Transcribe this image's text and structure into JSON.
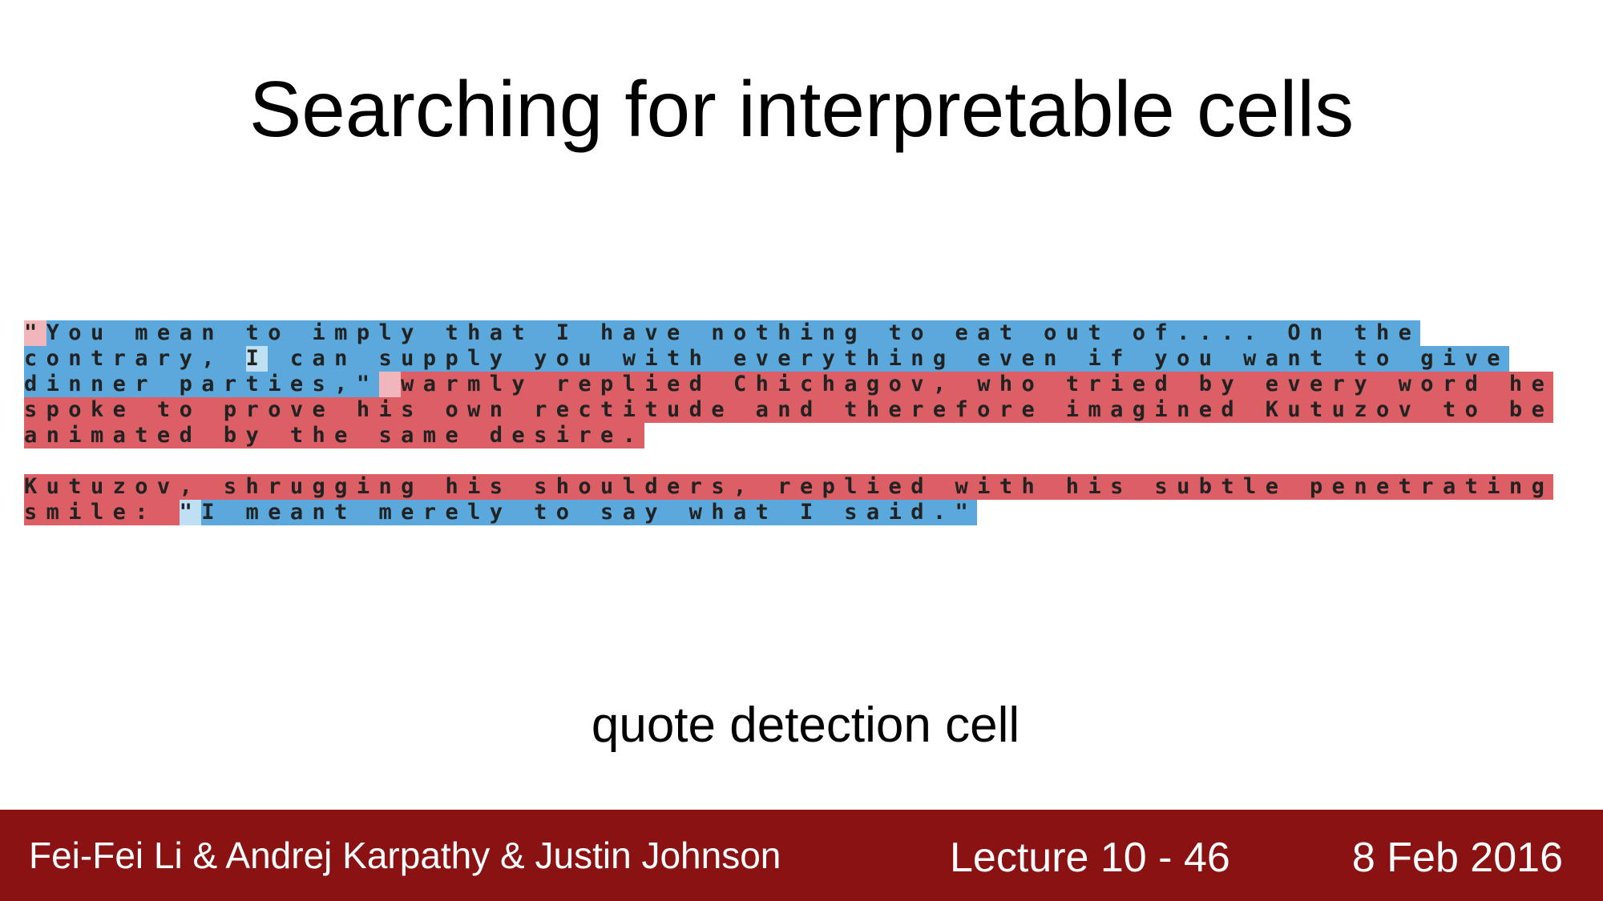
{
  "slide": {
    "title": "Searching for  interpretable cells",
    "caption": "quote detection cell"
  },
  "colors": {
    "inside_quote": "#5aa8dc",
    "outside_quote": "#dc5f66",
    "light_inside": "#bfe0f2",
    "light_outside": "#f0b6b9"
  },
  "text_lines": [
    [
      {
        "text": "\"",
        "state": "light_outside"
      },
      {
        "text": "You mean to imply that I have nothing to eat out of.... On the",
        "state": "inside_quote"
      }
    ],
    [
      {
        "text": "contrary, ",
        "state": "inside_quote"
      },
      {
        "text": "I",
        "state": "light_inside"
      },
      {
        "text": " can supply you with everything even if you want to give",
        "state": "inside_quote"
      }
    ],
    [
      {
        "text": "dinner parties,\"",
        "state": "inside_quote"
      },
      {
        "text": " ",
        "state": "light_outside"
      },
      {
        "text": "warmly replied Chichagov, who tried by every word he",
        "state": "outside_quote"
      }
    ],
    [
      {
        "text": "spoke to prove his own rectitude and therefore imagined Kutuzov to be",
        "state": "outside_quote"
      }
    ],
    [
      {
        "text": "animated by the same desire.",
        "state": "outside_quote"
      }
    ],
    [],
    [
      {
        "text": "Kutuzov, shrugging his shoulders, replied with his subtle penetrating",
        "state": "outside_quote"
      }
    ],
    [
      {
        "text": "smile: ",
        "state": "outside_quote"
      },
      {
        "text": "\"",
        "state": "light_inside"
      },
      {
        "text": "I meant merely to say what I said.\"",
        "state": "inside_quote"
      }
    ]
  ],
  "footer": {
    "authors": "Fei-Fei Li & Andrej Karpathy & Justin Johnson",
    "lecture": "Lecture 10 -  46",
    "date": "8 Feb 2016"
  }
}
